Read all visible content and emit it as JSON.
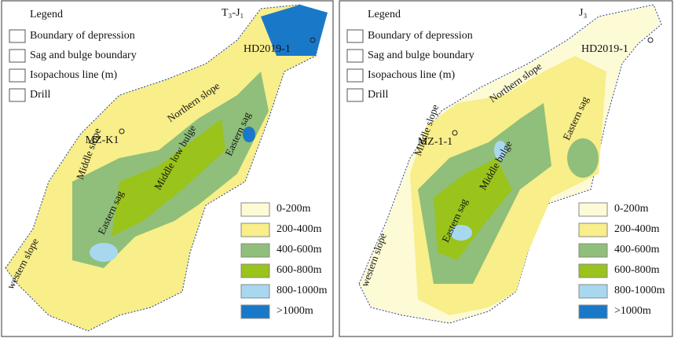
{
  "panels": [
    {
      "period": "T₃-J₁",
      "legend": {
        "title": "Legend",
        "items": [
          "Boundary of depression",
          "Sag and bulge boundary",
          "Isopachous line (m)",
          "Drill"
        ]
      },
      "wells": [
        "MZ-K1",
        "HD2019-1"
      ],
      "regions": [
        "western slope",
        "Middle slope",
        "Northern slope",
        "Eastern sag",
        "Middle low bulge",
        "Eastern sag"
      ],
      "thickness_legend": [
        {
          "label": "0-200m",
          "color": "#fdfbd6"
        },
        {
          "label": "200-400m",
          "color": "#f8ee8a"
        },
        {
          "label": "400-600m",
          "color": "#8fbf7a"
        },
        {
          "label": "600-800m",
          "color": "#9ac31c"
        },
        {
          "label": "800-1000m",
          "color": "#a8d8f0"
        },
        {
          "label": ">1000m",
          "color": "#1a78c8"
        }
      ]
    },
    {
      "period": "J₃",
      "legend": {
        "title": "Legend",
        "items": [
          "Boundary of depression",
          "Sag and bulge boundary",
          "Isopachous line (m)",
          "Drill"
        ]
      },
      "wells": [
        "MZ-1-1",
        "HD2019-1"
      ],
      "regions": [
        "western slope",
        "Middle slope",
        "Northern slope",
        "Eastern sag",
        "Middle bulge",
        "Eastern sag"
      ],
      "thickness_legend": [
        {
          "label": "0-200m",
          "color": "#fdfbd6"
        },
        {
          "label": "200-400m",
          "color": "#f8ee8a"
        },
        {
          "label": "400-600m",
          "color": "#8fbf7a"
        },
        {
          "label": "600-800m",
          "color": "#9ac31c"
        },
        {
          "label": "800-1000m",
          "color": "#a8d8f0"
        },
        {
          "label": ">1000m",
          "color": "#1a78c8"
        }
      ]
    }
  ]
}
